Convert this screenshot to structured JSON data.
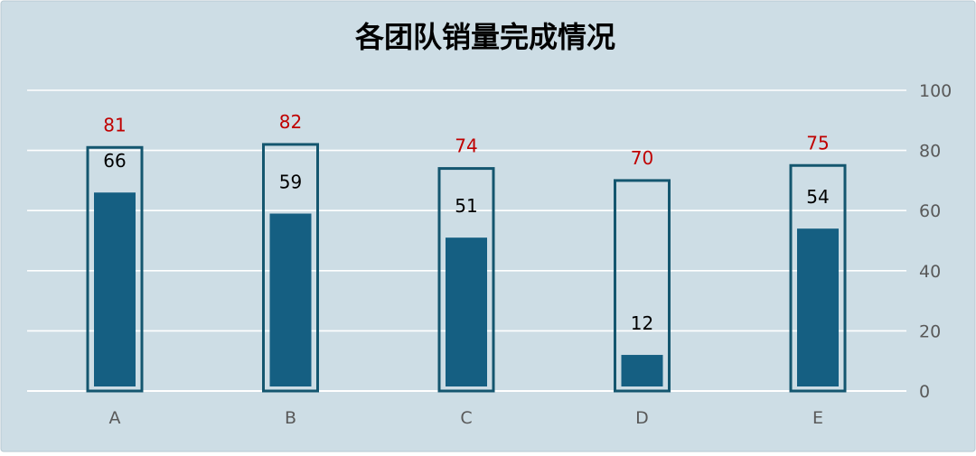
{
  "chart_data": {
    "type": "bar",
    "title": "各团队销量完成情况",
    "categories": [
      "A",
      "B",
      "C",
      "D",
      "E"
    ],
    "series": [
      {
        "role": "target",
        "values": [
          81,
          82,
          74,
          70,
          75
        ]
      },
      {
        "role": "actual",
        "values": [
          66,
          59,
          51,
          12,
          54
        ]
      }
    ],
    "ylim": [
      0,
      100
    ],
    "yticks": [
      0,
      20,
      40,
      60,
      80,
      100
    ],
    "y_axis_side": "right",
    "grid": true,
    "legend": "none"
  },
  "colors": {
    "background": "#cddde5",
    "target_outline": "#14566f",
    "actual_fill": "#155f82",
    "target_label": "#c00000",
    "actual_label": "#000000",
    "gridline": "#ffffff",
    "axis_text": "#595959",
    "title": "#000000"
  }
}
